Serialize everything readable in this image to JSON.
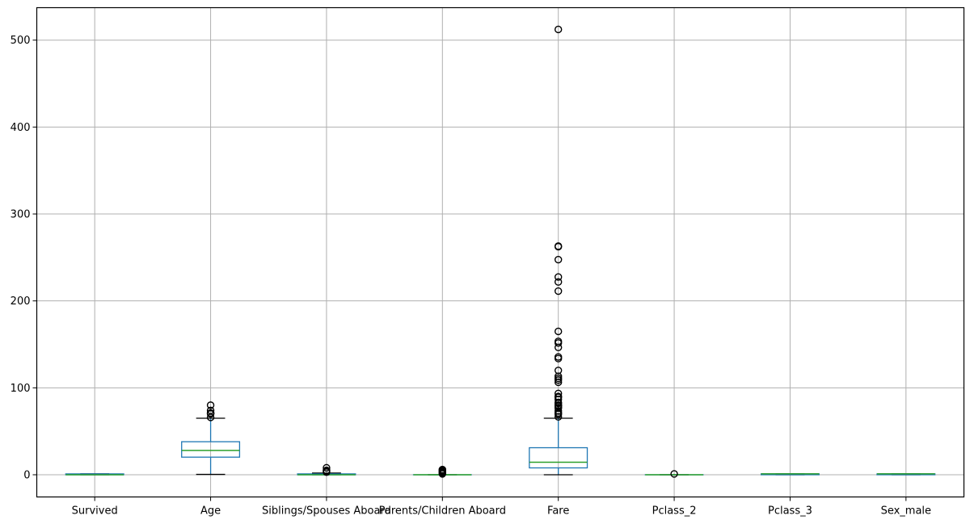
{
  "chart_data": {
    "type": "boxplot",
    "title": "",
    "xlabel": "",
    "ylabel": "",
    "ylim": [
      -25,
      538
    ],
    "grid": true,
    "y_ticks": [
      0,
      100,
      200,
      300,
      400,
      500
    ],
    "categories": [
      "Survived",
      "Age",
      "Siblings/Spouses Aboard",
      "Parents/Children Aboard",
      "Fare",
      "Pclass_2",
      "Pclass_3",
      "Sex_male"
    ],
    "boxes": [
      {
        "label": "Survived",
        "min": 0,
        "q1": 0,
        "median": 0,
        "q3": 1,
        "max": 1,
        "outliers": []
      },
      {
        "label": "Age",
        "min": 0.42,
        "q1": 20.25,
        "median": 28,
        "q3": 38,
        "max": 65,
        "outliers": [
          66,
          70,
          70.5,
          71,
          74,
          80
        ]
      },
      {
        "label": "Siblings/Spouses Aboard",
        "min": 0,
        "q1": 0,
        "median": 0,
        "q3": 1,
        "max": 2,
        "outliers": [
          3,
          4,
          5,
          8
        ]
      },
      {
        "label": "Parents/Children Aboard",
        "min": 0,
        "q1": 0,
        "median": 0,
        "q3": 0,
        "max": 0,
        "outliers": [
          1,
          2,
          3,
          4,
          5,
          6
        ]
      },
      {
        "label": "Fare",
        "min": 0,
        "q1": 7.9,
        "median": 14.45,
        "q3": 31.1,
        "max": 65,
        "outliers": [
          66.6,
          69.55,
          71,
          73.5,
          76.7,
          77.3,
          78.85,
          79.65,
          80,
          82.2,
          83.15,
          86.5,
          89.1,
          90,
          93.5,
          106.4,
          108.9,
          110.9,
          113.3,
          120,
          133.65,
          135.6,
          146.5,
          151.55,
          153.46,
          164.9,
          211.3,
          221.8,
          227.5,
          247.5,
          262.4,
          263,
          512.3
        ]
      },
      {
        "label": "Pclass_2",
        "min": 0,
        "q1": 0,
        "median": 0,
        "q3": 0,
        "max": 0,
        "outliers": [
          1
        ]
      },
      {
        "label": "Pclass_3",
        "min": 0,
        "q1": 0,
        "median": 1,
        "q3": 1,
        "max": 1,
        "outliers": []
      },
      {
        "label": "Sex_male",
        "min": 0,
        "q1": 0,
        "median": 1,
        "q3": 1,
        "max": 1,
        "outliers": []
      }
    ],
    "colors": {
      "box": "#1f77b4",
      "median": "#2ca02c",
      "whisker": "#1f77b4",
      "cap": "#000000",
      "flier": "#000000",
      "grid": "#b0b0b0"
    }
  },
  "axis": {
    "y_tick_labels": [
      "0",
      "100",
      "200",
      "300",
      "400",
      "500"
    ],
    "x_tick_labels": [
      "Survived",
      "Age",
      "Siblings/Spouses Aboard",
      "Parents/Children Aboard",
      "Fare",
      "Pclass_2",
      "Pclass_3",
      "Sex_male"
    ]
  }
}
